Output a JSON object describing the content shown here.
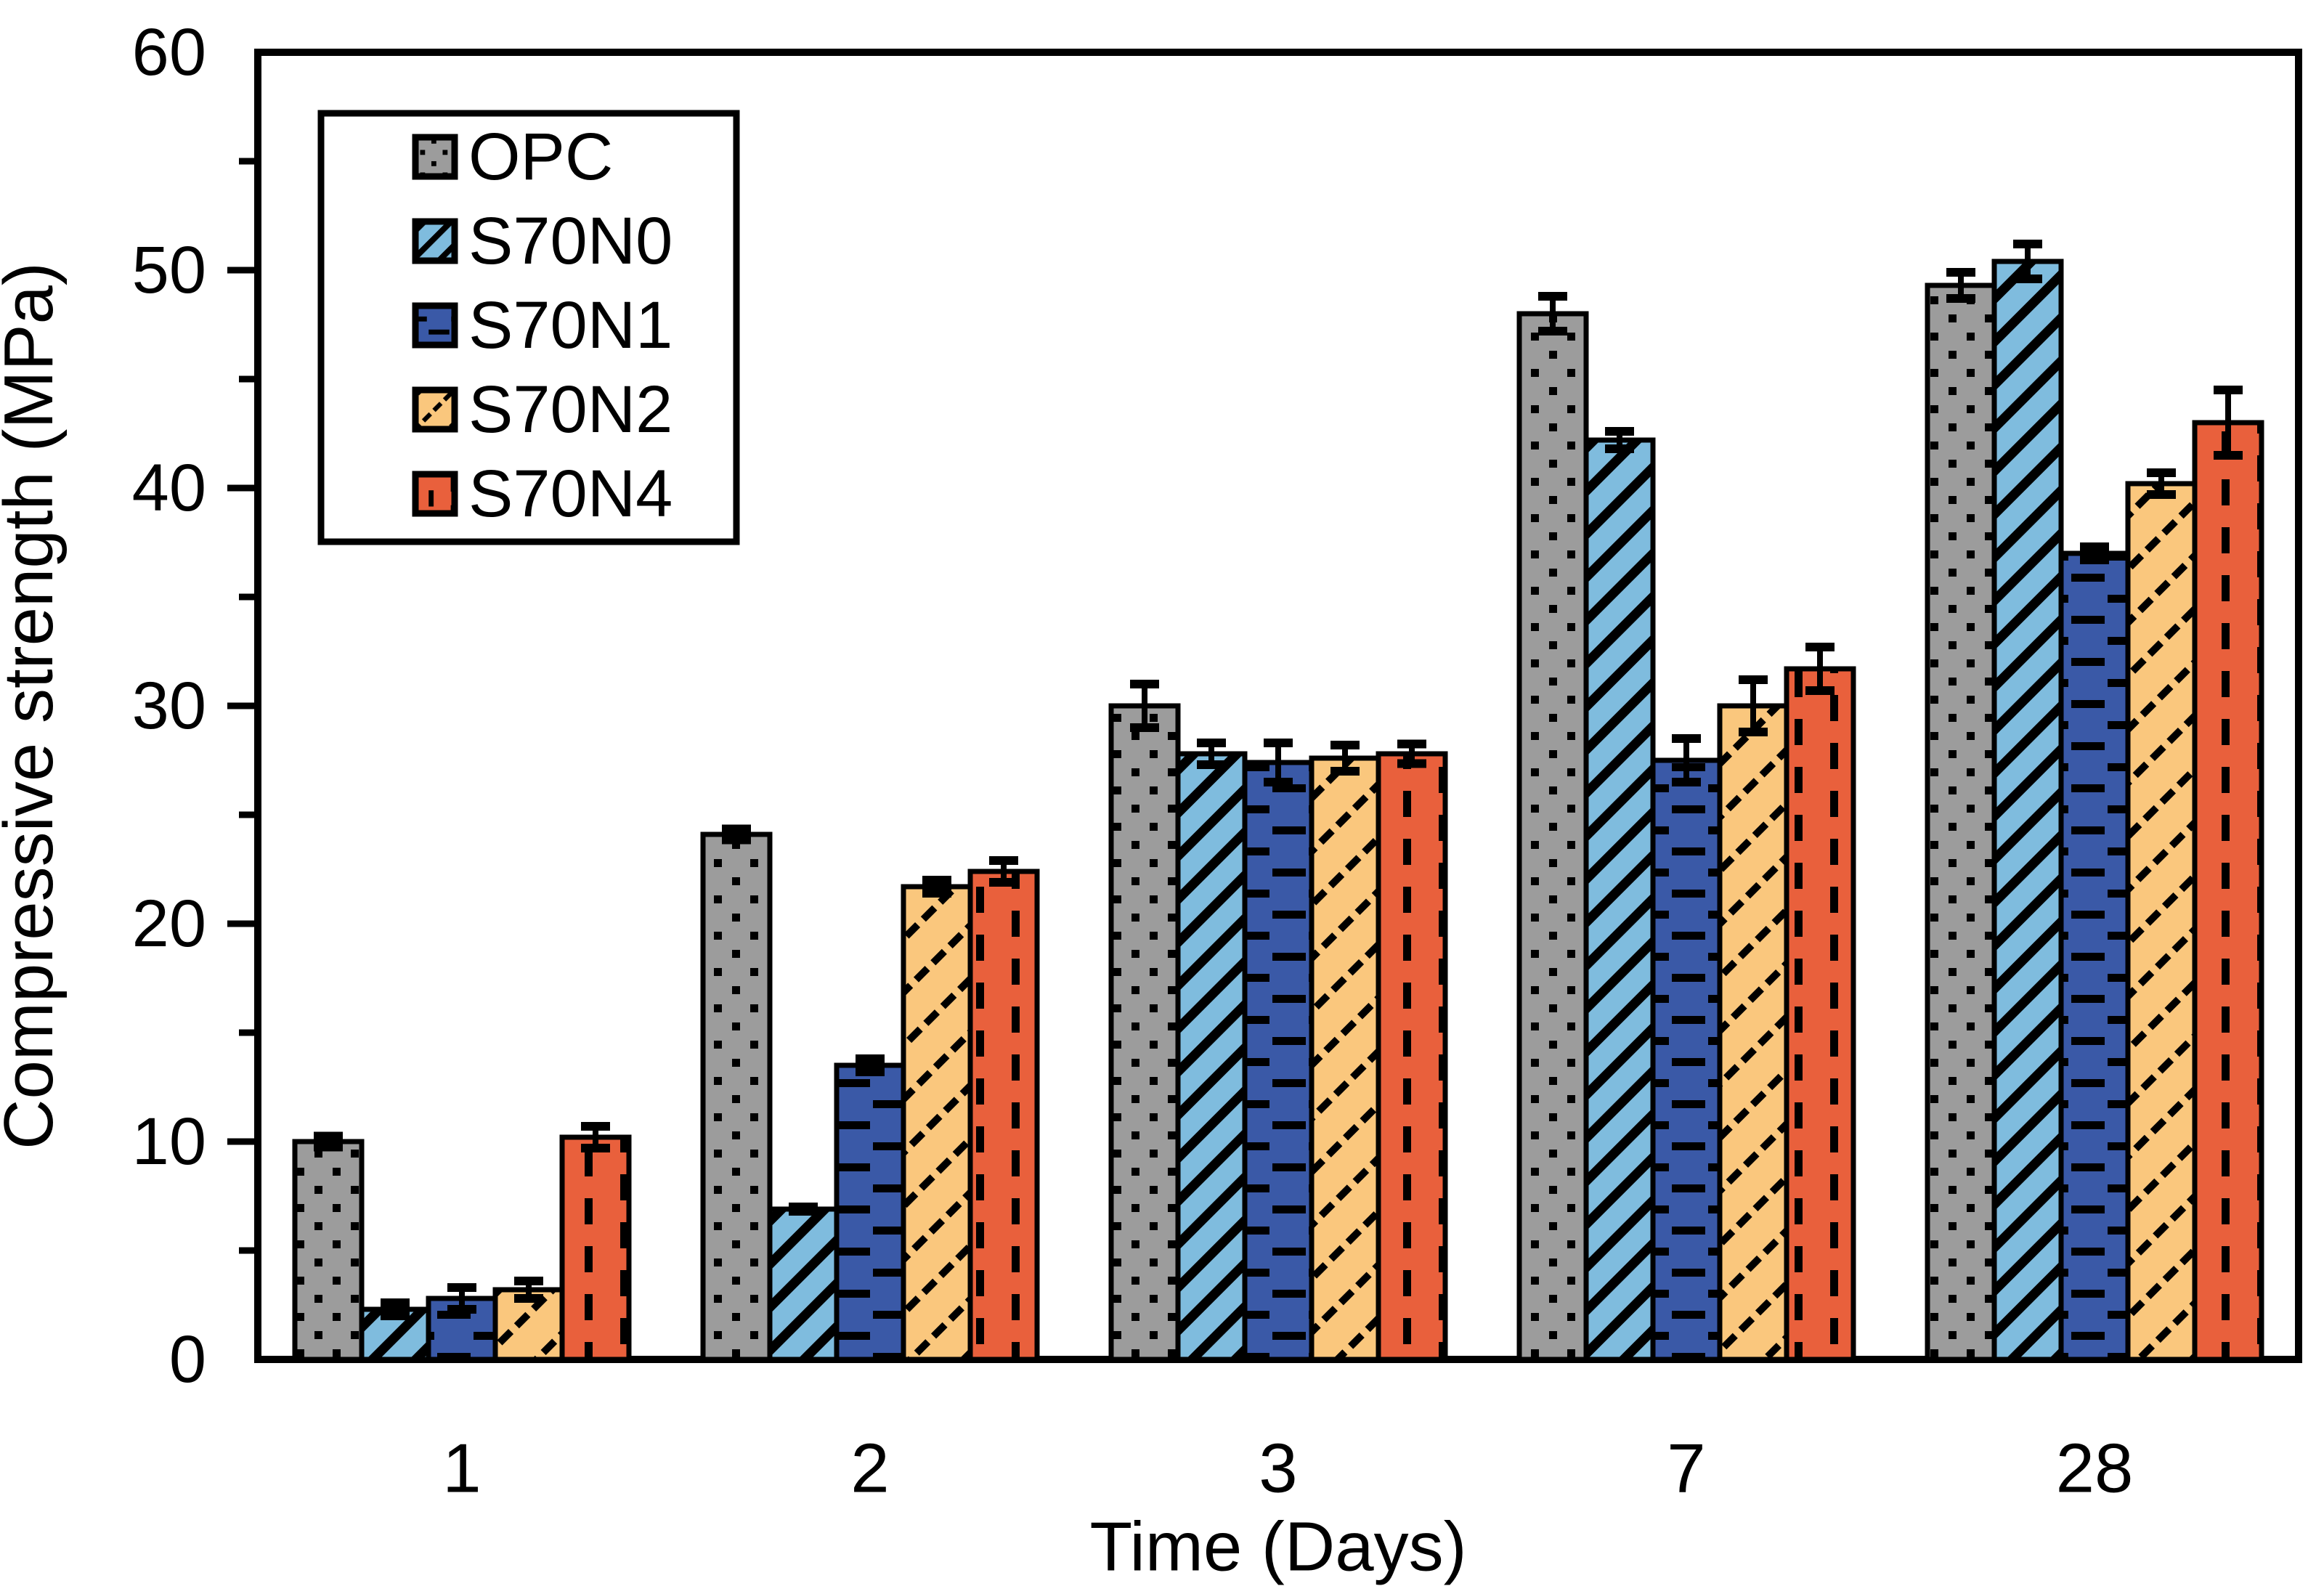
{
  "figure": {
    "background": "#ffffff",
    "ink": "#000000"
  },
  "chart_data": {
    "type": "bar",
    "title": "",
    "xlabel": "Time (Days)",
    "ylabel": "Compressive strength (MPa)",
    "categories": [
      "1",
      "2",
      "3",
      "7",
      "28"
    ],
    "ylim": [
      0,
      60
    ],
    "y_major_ticks": [
      0,
      10,
      20,
      30,
      40,
      50,
      60
    ],
    "y_minor_step": 5,
    "grid": false,
    "legend_position": "upper-left-inside",
    "legend_entries": [
      "OPC",
      "S70N0",
      "S70N1",
      "S70N2",
      "S70N4"
    ],
    "series": [
      {
        "name": "OPC",
        "color": "#9C9C9C",
        "pattern": "dots",
        "values": [
          10.0,
          24.1,
          30.0,
          48.0,
          49.3
        ],
        "errors": [
          0.25,
          0.25,
          1.0,
          0.8,
          0.6
        ]
      },
      {
        "name": "S70N0",
        "color": "#7FBCDE",
        "pattern": "diagonal-stripes",
        "values": [
          2.3,
          6.9,
          27.8,
          42.2,
          50.4
        ],
        "errors": [
          0.3,
          0.1,
          0.5,
          0.4,
          0.8
        ]
      },
      {
        "name": "S70N1",
        "color": "#3A59A7",
        "pattern": "horizontal-dashes",
        "values": [
          2.8,
          13.5,
          27.4,
          27.5,
          37.0
        ],
        "errors": [
          0.5,
          0.3,
          0.9,
          1.0,
          0.3
        ]
      },
      {
        "name": "S70N2",
        "color": "#FAC77D",
        "pattern": "diagonal-dashes",
        "values": [
          3.2,
          21.7,
          27.6,
          30.0,
          40.2
        ],
        "errors": [
          0.4,
          0.3,
          0.6,
          1.2,
          0.5
        ]
      },
      {
        "name": "S70N4",
        "color": "#E9603C",
        "pattern": "vertical-dashes",
        "values": [
          10.2,
          22.4,
          27.8,
          31.7,
          43.0
        ],
        "errors": [
          0.5,
          0.5,
          0.45,
          1.0,
          1.5
        ]
      }
    ]
  }
}
